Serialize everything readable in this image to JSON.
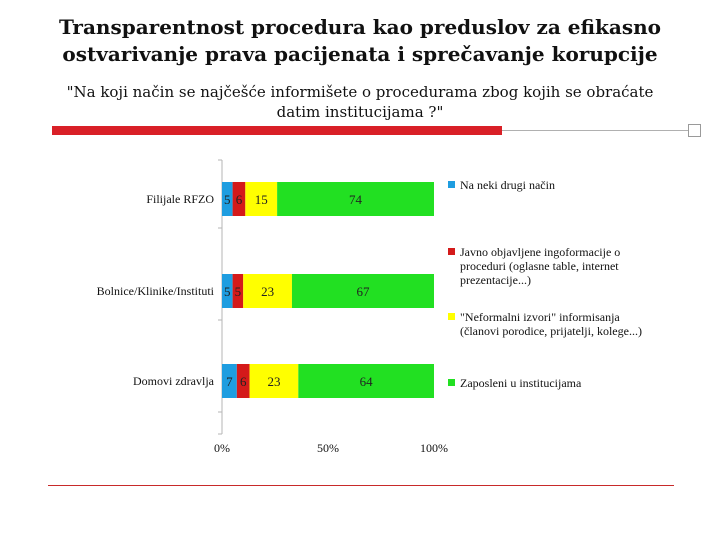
{
  "title": {
    "line1": "Transparentnost procedura kao preduslov za efikasno",
    "line2": "ostvarivanje prava pacijenata i sprečavanje korupcije"
  },
  "subtitle": {
    "line1": "\"Na koji način se najčešće informišete o procedurama zbog kojih se obraćate",
    "line2": "datim institucijama ?\""
  },
  "chart_data": {
    "type": "bar",
    "orientation": "horizontal",
    "stacked": true,
    "categories": [
      "Filijale RFZO",
      "Bolnice/Klinike/Instituti",
      "Domovi zdravlja"
    ],
    "xlim": [
      0,
      100
    ],
    "x_ticks": [
      "0%",
      "50%",
      "100%"
    ],
    "series": [
      {
        "name": "Na neki drugi način",
        "color": "#1e9de0",
        "values": [
          5,
          5,
          7
        ]
      },
      {
        "name": "Javno objavljene ingoformacije o proceduri (oglasne table, internet prezentacije...)",
        "color": "#d41a1a",
        "values": [
          6,
          5,
          6
        ]
      },
      {
        "name": "\"Neformalni izvori\" informisanja (članovi porodice, prijatelji, kolege...)",
        "color": "#ffff00",
        "values": [
          15,
          23,
          23
        ]
      },
      {
        "name": "Zaposleni u institucijama",
        "color": "#22e022",
        "values": [
          74,
          67,
          64
        ]
      }
    ],
    "legend": [
      {
        "label_lines": [
          "Na neki drugi način"
        ]
      },
      {
        "label_lines": [
          "Javno objavljene ingoformacije o",
          "proceduri (oglasne table, internet",
          "prezentacije...)"
        ]
      },
      {
        "label_lines": [
          "\"Neformalni izvori\" informisanja",
          "(članovi porodice, prijatelji, kolege...)"
        ]
      },
      {
        "label_lines": [
          "Zaposleni u institucijama"
        ]
      }
    ],
    "legend_position": "right"
  }
}
